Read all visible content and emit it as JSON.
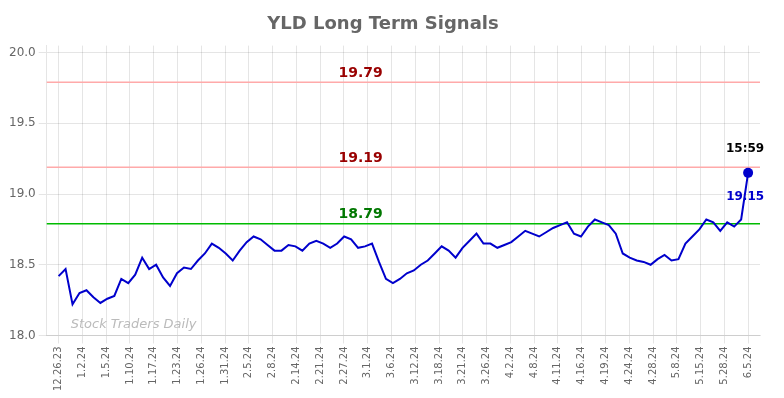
{
  "chart_data": {
    "type": "line",
    "title": "YLD Long Term Signals",
    "x": [
      0,
      0.2929292929,
      0.5858585858,
      0.8787878787,
      1.1717171717,
      1.4646464646,
      1.7575757575,
      2.0505050505,
      2.3434343434,
      2.6363636363,
      2.9292929292,
      3.2222222222,
      3.5151515151,
      3.808080808,
      4.101010101,
      4.3939393939,
      4.6868686868,
      4.9797979797,
      5.2727272727,
      5.5656565656,
      5.8585858585,
      6.1515151515,
      6.4444444444,
      6.7373737373,
      7.0303030303,
      7.3232323232,
      7.6161616161,
      7.909090909,
      8.202020202,
      8.4949494949,
      8.7878787878,
      9.0808080808,
      9.3737373737,
      9.6666666666,
      9.9595959595,
      10.2525252525,
      10.5454545454,
      10.8383838383,
      11.1313131313,
      11.4242424242,
      11.7171717171,
      12.0101010101,
      12.303030303,
      12.5959595959,
      12.8888888888,
      13.1818181818,
      13.4747474747,
      13.7676767676,
      14.0606060606,
      14.3535353535,
      14.6464646464,
      14.9393939393,
      15.2323232323,
      15.5252525252,
      15.8181818181,
      16.1111111111,
      16.404040404,
      16.6969696969,
      16.9898989898,
      17.2828282828,
      17.5757575757,
      17.8686868686,
      18.1616161616,
      18.4545454545,
      18.7474747474,
      19.0404040404,
      19.3333333333,
      19.6262626262,
      19.9191919191,
      20.2121212121,
      20.505050505,
      20.7979797979,
      21.0909090909,
      21.3838383838,
      21.6767676767,
      21.9696969696,
      22.2626262626,
      22.5555555555,
      22.8484848484,
      23.1414141414,
      23.4343434343,
      23.7272727272,
      24.0202020202,
      24.3131313131,
      24.606060606,
      24.8989898989,
      25.1919191919,
      25.4848484848,
      25.7777777777,
      26.0707070707,
      26.3636363636,
      26.6565656565,
      26.9494949494,
      27.2424242424,
      27.5353535353,
      27.8282828282,
      28.1212121212,
      28.4141414141,
      28.707070707,
      29
    ],
    "values": [
      18.42,
      18.47,
      18.22,
      18.3,
      18.32,
      18.27,
      18.23,
      18.26,
      18.28,
      18.4,
      18.37,
      18.43,
      18.55,
      18.47,
      18.5,
      18.41,
      18.35,
      18.44,
      18.48,
      18.47,
      18.53,
      18.58,
      18.65,
      18.62,
      18.58,
      18.53,
      18.6,
      18.66,
      18.7,
      18.68,
      18.64,
      18.6,
      18.6,
      18.64,
      18.63,
      18.6,
      18.65,
      18.67,
      18.65,
      18.62,
      18.65,
      18.7,
      18.68,
      18.62,
      18.63,
      18.65,
      18.52,
      18.4,
      18.37,
      18.4,
      18.44,
      18.46,
      18.5,
      18.53,
      18.58,
      18.63,
      18.6,
      18.55,
      18.62,
      18.67,
      18.72,
      18.65,
      18.65,
      18.62,
      18.64,
      18.66,
      18.7,
      18.74,
      18.72,
      18.7,
      18.73,
      18.76,
      18.78,
      18.8,
      18.72,
      18.7,
      18.77,
      18.82,
      18.8,
      18.78,
      18.72,
      18.58,
      18.55,
      18.53,
      18.52,
      18.5,
      18.54,
      18.57,
      18.53,
      18.54,
      18.65,
      18.7,
      18.75,
      18.82,
      18.8,
      18.74,
      18.8,
      18.77,
      18.82,
      19.15
    ],
    "color": "#0000cc",
    "xlim": [
      -0.5,
      29.5
    ],
    "xticks": [
      {
        "value": 0,
        "label": "12.26.23"
      },
      {
        "value": 1,
        "label": "1.2.24"
      },
      {
        "value": 2,
        "label": "1.5.24"
      },
      {
        "value": 3,
        "label": "1.10.24"
      },
      {
        "value": 4,
        "label": "1.17.24"
      },
      {
        "value": 5,
        "label": "1.23.24"
      },
      {
        "value": 6,
        "label": "1.26.24"
      },
      {
        "value": 7,
        "label": "1.31.24"
      },
      {
        "value": 8,
        "label": "2.5.24"
      },
      {
        "value": 9,
        "label": "2.8.24"
      },
      {
        "value": 10,
        "label": "2.14.24"
      },
      {
        "value": 11,
        "label": "2.21.24"
      },
      {
        "value": 12,
        "label": "2.27.24"
      },
      {
        "value": 13,
        "label": "3.1.24"
      },
      {
        "value": 14,
        "label": "3.6.24"
      },
      {
        "value": 15,
        "label": "3.12.24"
      },
      {
        "value": 16,
        "label": "3.18.24"
      },
      {
        "value": 17,
        "label": "3.21.24"
      },
      {
        "value": 18,
        "label": "3.26.24"
      },
      {
        "value": 19,
        "label": "4.2.24"
      },
      {
        "value": 20,
        "label": "4.8.24"
      },
      {
        "value": 21,
        "label": "4.11.24"
      },
      {
        "value": 22,
        "label": "4.16.24"
      },
      {
        "value": 23,
        "label": "4.19.24"
      },
      {
        "value": 24,
        "label": "4.24.24"
      },
      {
        "value": 25,
        "label": "4.28.24"
      },
      {
        "value": 26,
        "label": "5.8.24"
      },
      {
        "value": 27,
        "label": "5.15.24"
      },
      {
        "value": 28,
        "label": "5.28.24"
      },
      {
        "value": 29,
        "label": "6.5.24"
      }
    ],
    "ylim": [
      18.0,
      20.05
    ],
    "yticks": [
      {
        "value": 18.0,
        "label": "18.0"
      },
      {
        "value": 18.5,
        "label": "18.5"
      },
      {
        "value": 19.0,
        "label": "19.0"
      },
      {
        "value": 19.5,
        "label": "19.5"
      },
      {
        "value": 20.0,
        "label": "20.0"
      }
    ],
    "grid": true,
    "hlines": [
      {
        "value": 19.79,
        "label": "19.79",
        "color": "#ffaaaa",
        "label_color": "#990000"
      },
      {
        "value": 19.19,
        "label": "19.19",
        "color": "#ffaaaa",
        "label_color": "#990000"
      },
      {
        "value": 18.79,
        "label": "18.79",
        "color": "#00bb00",
        "label_color": "#007700"
      }
    ],
    "annotations": [
      {
        "text": "15:59",
        "x": 29,
        "y": 19.15,
        "position": "above",
        "color": "#000000"
      },
      {
        "text": "19.15",
        "x": 29,
        "y": 19.15,
        "position": "below",
        "color": "#0000cc",
        "marker": "circle"
      }
    ],
    "watermark": {
      "text": "Stock Traders Daily",
      "color": "#bbbbbb"
    }
  }
}
